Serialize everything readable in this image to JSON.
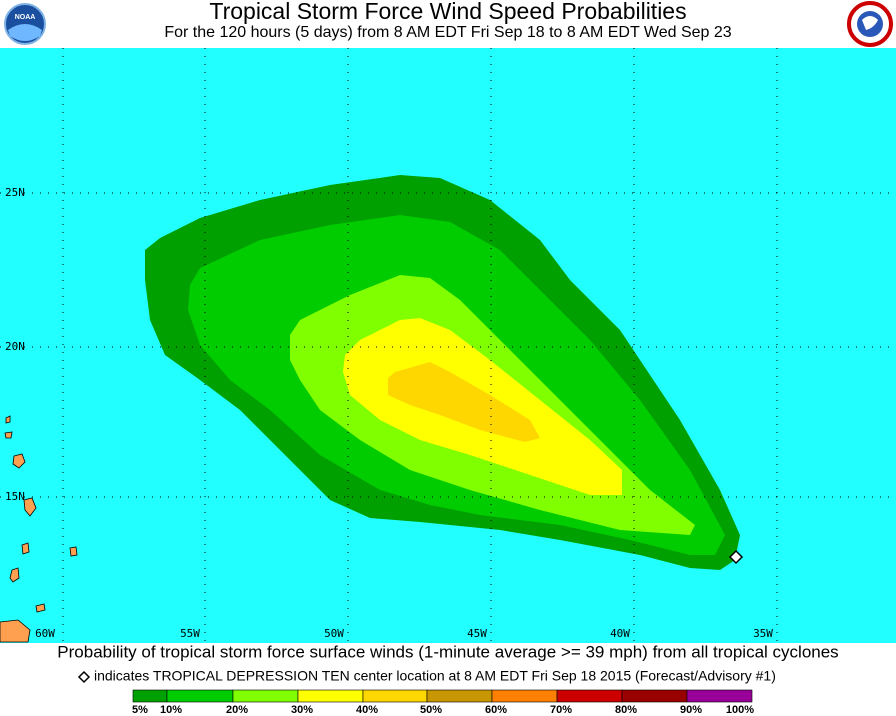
{
  "header": {
    "title": "Tropical Storm Force Wind Speed Probabilities",
    "subtitle": "For the 120 hours (5 days) from 8 AM EDT Fri Sep 18 to 8 AM EDT Wed Sep 23"
  },
  "map": {
    "lat_labels": [
      "25N",
      "20N",
      "15N"
    ],
    "lon_labels": [
      "60W",
      "55W",
      "50W",
      "45W",
      "40W",
      "35W"
    ]
  },
  "caption": "Probability of tropical storm force surface winds (1-minute average >= 39 mph) from all tropical cyclones",
  "note": "indicates TROPICAL DEPRESSION TEN center location at 8 AM EDT Fri Sep 18 2015 (Forecast/Advisory #1)",
  "legend": {
    "labels": [
      "5%",
      "10%",
      "20%",
      "30%",
      "40%",
      "50%",
      "60%",
      "70%",
      "80%",
      "90%",
      "100%"
    ],
    "colors": [
      "#00a000",
      "#00cc00",
      "#80ff00",
      "#ffff00",
      "#ffd700",
      "#c89600",
      "#ff8000",
      "#cc0000",
      "#990000",
      "#990099"
    ]
  }
}
